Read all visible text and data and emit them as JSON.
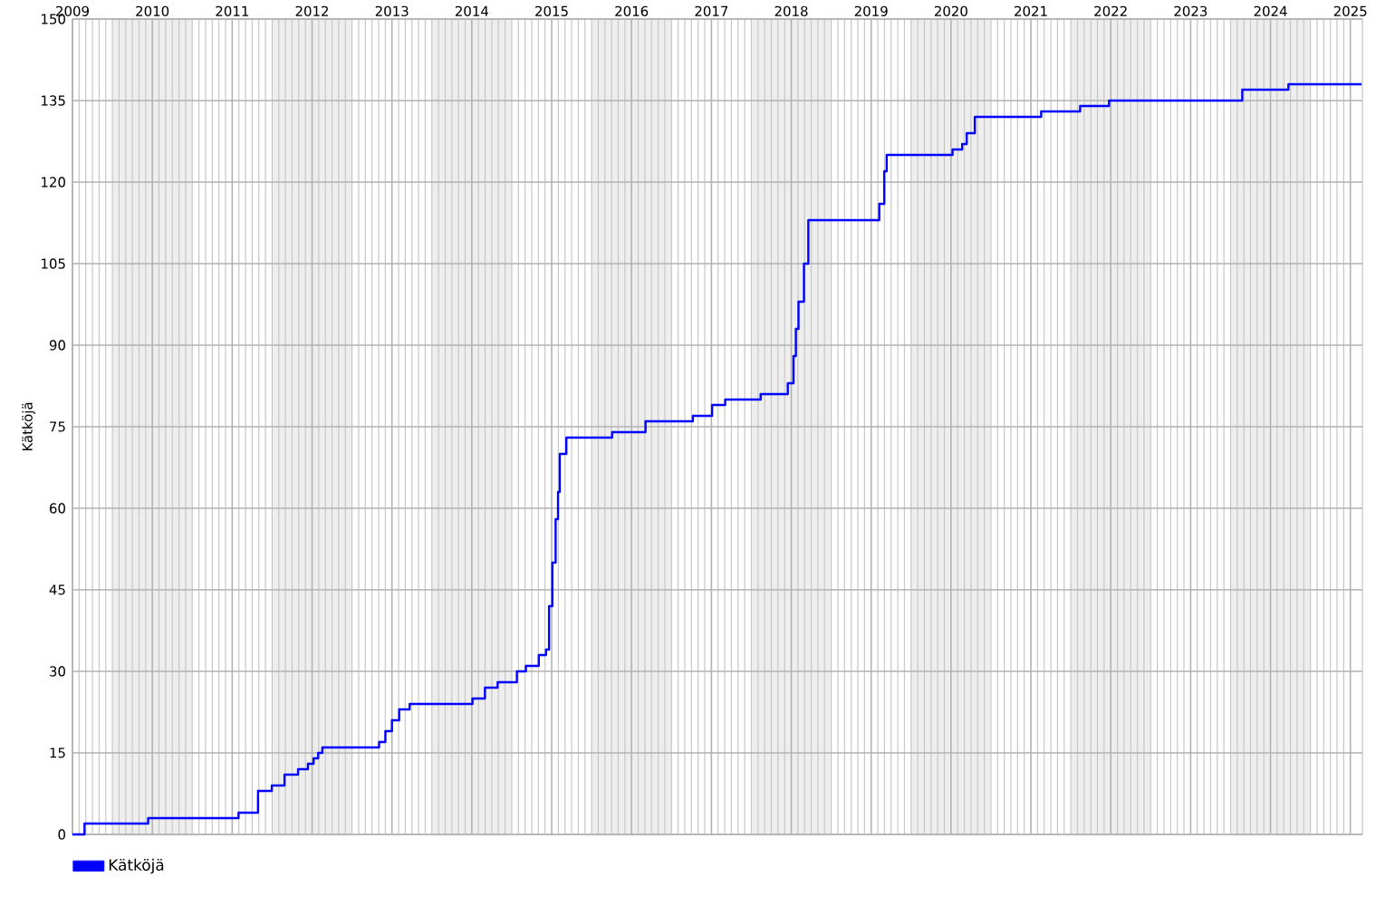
{
  "chart_data": {
    "type": "step",
    "ylabel": "Kätköjä",
    "xlim": [
      "2009-01-01",
      "2025-02-25"
    ],
    "ylim": [
      0,
      150
    ],
    "xticks": [
      {
        "value": "2009-01-01",
        "label": "2009"
      },
      {
        "value": "2010-01-01",
        "label": "2010"
      },
      {
        "value": "2011-01-01",
        "label": "2011"
      },
      {
        "value": "2012-01-01",
        "label": "2012"
      },
      {
        "value": "2013-01-01",
        "label": "2013"
      },
      {
        "value": "2014-01-01",
        "label": "2014"
      },
      {
        "value": "2015-01-01",
        "label": "2015"
      },
      {
        "value": "2016-01-01",
        "label": "2016"
      },
      {
        "value": "2017-01-01",
        "label": "2017"
      },
      {
        "value": "2018-01-01",
        "label": "2018"
      },
      {
        "value": "2019-01-01",
        "label": "2019"
      },
      {
        "value": "2020-01-01",
        "label": "2020"
      },
      {
        "value": "2021-01-01",
        "label": "2021"
      },
      {
        "value": "2022-01-01",
        "label": "2022"
      },
      {
        "value": "2023-01-01",
        "label": "2023"
      },
      {
        "value": "2024-01-01",
        "label": "2024"
      },
      {
        "value": "2025-01-01",
        "label": "2025"
      }
    ],
    "yticks": [
      0,
      15,
      30,
      45,
      60,
      75,
      90,
      105,
      120,
      135,
      150
    ],
    "grid": true,
    "legend": "bottom left",
    "marker": "none",
    "line_style": "solid",
    "bands": [
      {
        "axis": "x",
        "from": "2009-07-01",
        "to": "2010-07-01",
        "color": "#eeeeee"
      },
      {
        "axis": "x",
        "from": "2011-07-01",
        "to": "2012-07-01",
        "color": "#eeeeee"
      },
      {
        "axis": "x",
        "from": "2013-07-01",
        "to": "2014-07-01",
        "color": "#eeeeee"
      },
      {
        "axis": "x",
        "from": "2015-07-01",
        "to": "2016-07-01",
        "color": "#eeeeee"
      },
      {
        "axis": "x",
        "from": "2017-07-01",
        "to": "2018-07-01",
        "color": "#eeeeee"
      },
      {
        "axis": "x",
        "from": "2019-07-01",
        "to": "2020-07-01",
        "color": "#eeeeee"
      },
      {
        "axis": "x",
        "from": "2021-07-01",
        "to": "2022-07-01",
        "color": "#eeeeee"
      },
      {
        "axis": "x",
        "from": "2023-07-01",
        "to": "2024-07-01",
        "color": "#eeeeee"
      }
    ],
    "series": [
      {
        "name": "Kätköjä",
        "color": "#0000ff",
        "x": [
          "2009-01-01",
          "2009-02-25",
          "2009-12-13",
          "2011-01-30",
          "2011-04-29",
          "2011-07-01",
          "2011-08-28",
          "2011-10-29",
          "2011-12-13",
          "2012-01-08",
          "2012-01-29",
          "2012-02-17",
          "2012-11-03",
          "2012-12-02",
          "2013-01-01",
          "2013-02-03",
          "2013-03-23",
          "2014-01-04",
          "2014-03-02",
          "2014-04-29",
          "2014-07-26",
          "2014-09-05",
          "2014-11-03",
          "2014-12-06",
          "2014-12-20",
          "2015-01-04",
          "2015-01-19",
          "2015-01-30",
          "2015-02-07",
          "2015-03-09",
          "2015-10-04",
          "2016-03-05",
          "2016-10-08",
          "2017-01-04",
          "2017-03-05",
          "2017-08-14",
          "2017-12-16",
          "2018-01-11",
          "2018-01-22",
          "2018-02-03",
          "2018-02-28",
          "2018-03-20",
          "2019-02-07",
          "2019-03-02",
          "2019-03-13",
          "2020-01-08",
          "2020-02-21",
          "2020-03-13",
          "2020-04-19",
          "2021-02-17",
          "2021-08-14",
          "2021-12-24",
          "2023-08-25",
          "2024-03-23",
          "2025-02-21"
        ],
        "values": [
          0,
          2,
          3,
          4,
          8,
          9,
          11,
          12,
          13,
          14,
          15,
          16,
          17,
          19,
          21,
          23,
          24,
          25,
          27,
          28,
          30,
          31,
          33,
          34,
          42,
          50,
          58,
          63,
          70,
          73,
          74,
          76,
          77,
          79,
          80,
          81,
          83,
          88,
          93,
          98,
          105,
          113,
          116,
          122,
          125,
          126,
          127,
          129,
          132,
          133,
          134,
          135,
          137,
          138,
          138
        ]
      }
    ]
  }
}
